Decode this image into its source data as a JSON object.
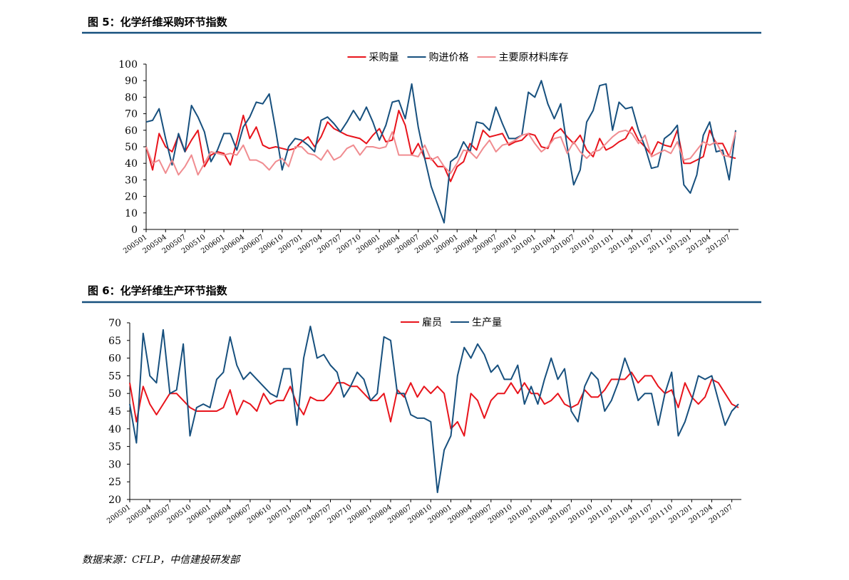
{
  "chart_data": [
    {
      "type": "line",
      "title": "图 5：化学纤维采购环节指数",
      "categories": [
        "200501",
        null,
        null,
        "200504",
        null,
        null,
        "200507",
        null,
        null,
        "200510",
        null,
        null,
        "200601",
        null,
        null,
        "200604",
        null,
        null,
        "200607",
        null,
        null,
        "200610",
        null,
        null,
        "200701",
        null,
        null,
        "200704",
        null,
        null,
        "200707",
        null,
        null,
        "200710",
        null,
        null,
        "200801",
        null,
        null,
        "200804",
        null,
        null,
        "200807",
        null,
        null,
        "200810",
        null,
        null,
        "200901",
        null,
        null,
        "200904",
        null,
        null,
        "200907",
        null,
        null,
        "200910",
        null,
        null,
        "201001",
        null,
        null,
        "201004",
        null,
        null,
        "201007",
        null,
        null,
        "201010",
        null,
        null,
        "201101",
        null,
        null,
        "201104",
        null,
        null,
        "201107",
        null,
        null,
        "201110",
        null,
        null,
        "201201",
        null,
        null,
        "201204",
        null,
        null,
        "201207",
        null
      ],
      "series": [
        {
          "name": "采购量",
          "color": "#e8141c",
          "values": [
            50,
            36,
            58,
            50,
            47,
            57,
            47,
            54,
            60,
            38,
            45,
            47,
            46,
            39,
            53,
            69,
            55,
            62,
            51,
            49,
            50,
            49,
            48,
            49,
            53,
            56,
            50,
            56,
            65,
            61,
            59,
            57,
            56,
            55,
            52,
            57,
            61,
            53,
            54,
            72,
            63,
            45,
            52,
            43,
            43,
            38,
            38,
            29,
            38,
            41,
            52,
            48,
            60,
            56,
            57,
            58,
            51,
            53,
            54,
            58,
            57,
            50,
            49,
            58,
            61,
            56,
            52,
            57,
            48,
            44,
            55,
            48,
            50,
            53,
            55,
            62,
            54,
            50,
            45,
            53,
            51,
            50,
            60,
            40,
            40,
            42,
            44,
            60,
            52,
            52,
            44,
            43
          ]
        },
        {
          "name": "购进价格",
          "color": "#17507e",
          "values": [
            65,
            66,
            73,
            55,
            39,
            58,
            47,
            75,
            68,
            59,
            41,
            48,
            58,
            58,
            48,
            62,
            68,
            77,
            76,
            82,
            60,
            36,
            50,
            55,
            54,
            51,
            47,
            66,
            68,
            64,
            59,
            65,
            72,
            66,
            74,
            65,
            54,
            63,
            77,
            78,
            67,
            88,
            62,
            43,
            26,
            15,
            4,
            41,
            44,
            53,
            47,
            65,
            64,
            60,
            74,
            64,
            55,
            55,
            57,
            83,
            80,
            90,
            76,
            67,
            76,
            50,
            27,
            36,
            65,
            72,
            87,
            88,
            60,
            77,
            73,
            74,
            60,
            50,
            37,
            38,
            55,
            58,
            63,
            27,
            22,
            33,
            57,
            65,
            47,
            48,
            30,
            60
          ]
        },
        {
          "name": "主要原材料库存",
          "color": "#f08c90",
          "values": [
            50,
            40,
            42,
            34,
            42,
            33,
            38,
            45,
            33,
            40,
            47,
            46,
            45,
            46,
            45,
            51,
            42,
            42,
            40,
            36,
            41,
            43,
            38,
            50,
            50,
            46,
            45,
            42,
            48,
            42,
            44,
            49,
            51,
            45,
            50,
            50,
            49,
            50,
            59,
            45,
            45,
            45,
            44,
            51,
            42,
            44,
            38,
            34,
            40,
            48,
            47,
            43,
            49,
            54,
            47,
            51,
            52,
            54,
            57,
            58,
            52,
            47,
            50,
            55,
            56,
            46,
            53,
            47,
            43,
            47,
            48,
            52,
            56,
            59,
            60,
            58,
            52,
            57,
            44,
            46,
            48,
            46,
            53,
            42,
            43,
            48,
            53,
            51,
            53,
            45,
            44,
            59
          ]
        }
      ],
      "ylim": [
        0,
        100
      ],
      "yticks": [
        0,
        10,
        20,
        30,
        40,
        50,
        60,
        70,
        80,
        90,
        100
      ]
    },
    {
      "type": "line",
      "title": "图 6：化学纤维生产环节指数",
      "categories": [
        "200501",
        null,
        null,
        "200504",
        null,
        null,
        "200507",
        null,
        null,
        "200510",
        null,
        null,
        "200601",
        null,
        null,
        "200604",
        null,
        null,
        "200607",
        null,
        null,
        "200610",
        null,
        null,
        "200701",
        null,
        null,
        "200704",
        null,
        null,
        "200707",
        null,
        null,
        "200710",
        null,
        null,
        "200801",
        null,
        null,
        "200804",
        null,
        null,
        "200807",
        null,
        null,
        "200810",
        null,
        null,
        "200901",
        null,
        null,
        "200904",
        null,
        null,
        "200907",
        null,
        null,
        "200910",
        null,
        null,
        "201001",
        null,
        null,
        "201004",
        null,
        null,
        "201007",
        null,
        null,
        "201010",
        null,
        null,
        "201101",
        null,
        null,
        "201104",
        null,
        null,
        "201107",
        null,
        null,
        "201110",
        null,
        null,
        "201201",
        null,
        null,
        "201204",
        null,
        null,
        "201207",
        null
      ],
      "series": [
        {
          "name": "雇员",
          "color": "#e8141c",
          "values": [
            53,
            42,
            52,
            47,
            44,
            47,
            50,
            50,
            48,
            46,
            45,
            45,
            45,
            45,
            46,
            51,
            44,
            48,
            47,
            45,
            50,
            47,
            48,
            48,
            52,
            47,
            44,
            49,
            48,
            48,
            50,
            53,
            53,
            52,
            52,
            50,
            48,
            48,
            50,
            42,
            51,
            49,
            53,
            49,
            52,
            50,
            52,
            50,
            40,
            42,
            38,
            50,
            48,
            43,
            48,
            50,
            50,
            53,
            50,
            53,
            50,
            50,
            47,
            48,
            50,
            47,
            46,
            47,
            51,
            49,
            49,
            51,
            54,
            54,
            54,
            56,
            53,
            55,
            55,
            52,
            50,
            51,
            46,
            53,
            49,
            47,
            49,
            54,
            53,
            50,
            47,
            46
          ]
        },
        {
          "name": "生产量",
          "color": "#17507e",
          "values": [
            47,
            36,
            67,
            55,
            53,
            68,
            50,
            51,
            64,
            38,
            46,
            47,
            46,
            54,
            56,
            66,
            58,
            54,
            56,
            54,
            52,
            50,
            49,
            57,
            57,
            41,
            60,
            69,
            60,
            61,
            58,
            56,
            49,
            52,
            56,
            54,
            48,
            50,
            66,
            65,
            50,
            50,
            44,
            43,
            43,
            42,
            22,
            34,
            38,
            55,
            63,
            60,
            64,
            61,
            56,
            58,
            54,
            54,
            58,
            47,
            52,
            47,
            54,
            60,
            54,
            57,
            45,
            42,
            52,
            56,
            54,
            45,
            48,
            53,
            60,
            55,
            48,
            50,
            50,
            41,
            50,
            56,
            38,
            42,
            48,
            55,
            54,
            55,
            48,
            41,
            45,
            47
          ]
        }
      ],
      "ylim": [
        20,
        70
      ],
      "yticks": [
        20,
        25,
        30,
        35,
        40,
        45,
        50,
        55,
        60,
        65,
        70
      ]
    }
  ],
  "source": "数据来源：CFLP，中信建投研发部"
}
